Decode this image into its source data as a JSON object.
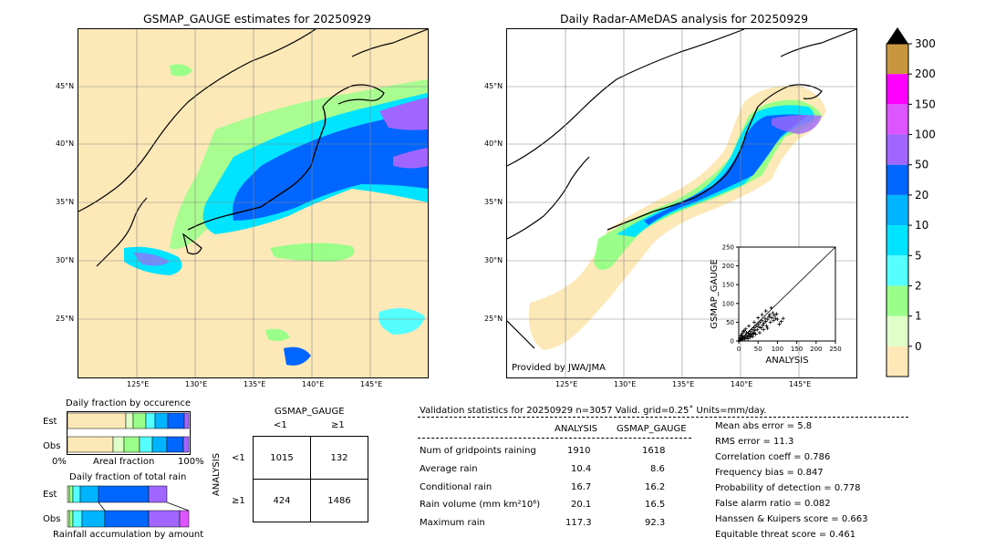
{
  "map_left": {
    "title": "GSMAP_GAUGE estimates for 20250929",
    "lat_labels": [
      "45°N",
      "40°N",
      "35°N",
      "30°N",
      "25°N"
    ],
    "lon_labels": [
      "125°E",
      "130°E",
      "135°E",
      "140°E",
      "145°E"
    ]
  },
  "map_right": {
    "title": "Daily Radar-AMeDAS analysis for 20250929",
    "lat_labels": [
      "45°N",
      "40°N",
      "35°N",
      "30°N",
      "25°N"
    ],
    "lon_labels": [
      "125°E",
      "130°E",
      "135°E",
      "140°E",
      "145°E"
    ],
    "credit": "Provided by JWA/JMA"
  },
  "colorbar": {
    "ticks": [
      "300",
      "200",
      "150",
      "100",
      "50",
      "20",
      "10",
      "5",
      "2",
      "1",
      "0"
    ],
    "colors": [
      "#c8963c",
      "#ff00ff",
      "#dd55ff",
      "#a066ff",
      "#0066ff",
      "#00b4ff",
      "#00e4ff",
      "#55ffff",
      "#99ff88",
      "#dfffc8",
      "#ffe8b8"
    ]
  },
  "fraction_occurrence": {
    "title": "Daily fraction by occurence",
    "rows": [
      "Est",
      "Obs"
    ],
    "axis_left": "0%",
    "axis_mid": "Areal fraction",
    "axis_right": "100%"
  },
  "fraction_total": {
    "title": "Daily fraction of total rain",
    "rows": [
      "Est",
      "Obs"
    ],
    "xlabel": "Rainfall accumulation by amount"
  },
  "contingency": {
    "title": "GSMAP_GAUGE",
    "col_headers": [
      "<1",
      "≥1"
    ],
    "row_label": "ANALYSIS",
    "row_headers": [
      "<1",
      "≥1"
    ],
    "cells": [
      [
        "1015",
        "132"
      ],
      [
        "424",
        "1486"
      ]
    ]
  },
  "validation": {
    "header": "Validation statistics for 20250929  n=3057 Valid. grid=0.25˚ Units=mm/day.",
    "col_analysis": "ANALYSIS",
    "col_gsmap": "GSMAP_GAUGE",
    "rows": [
      {
        "label": "Num of gridpoints raining",
        "analysis": "1910",
        "gsmap": "1618"
      },
      {
        "label": "Average rain",
        "analysis": "10.4",
        "gsmap": "8.6"
      },
      {
        "label": "Conditional rain",
        "analysis": "16.7",
        "gsmap": "16.2"
      },
      {
        "label": "Rain volume (mm km²10⁶)",
        "analysis": "20.1",
        "gsmap": "16.5"
      },
      {
        "label": "Maximum rain",
        "analysis": "117.3",
        "gsmap": "92.3"
      }
    ],
    "scores": [
      "Mean abs error =    5.8",
      "RMS error =   11.3",
      "Correlation coeff =  0.786",
      "Frequency bias =  0.847",
      "Probability of detection =  0.778",
      "False alarm ratio =  0.082",
      "Hanssen & Kuipers score =  0.663",
      "Equitable threat score =  0.461"
    ]
  },
  "chart_data": {
    "type": "scatter",
    "xlabel": "ANALYSIS",
    "ylabel": "GSMAP_GAUGE",
    "xlim": [
      0,
      250
    ],
    "ylim": [
      0,
      250
    ],
    "xticks": [
      "0",
      "50",
      "100",
      "150",
      "200",
      "250"
    ],
    "yticks": [
      "0",
      "50",
      "100",
      "150",
      "200",
      "250"
    ],
    "points": [
      [
        5,
        3
      ],
      [
        8,
        6
      ],
      [
        10,
        12
      ],
      [
        12,
        8
      ],
      [
        15,
        10
      ],
      [
        18,
        15
      ],
      [
        20,
        22
      ],
      [
        22,
        12
      ],
      [
        25,
        20
      ],
      [
        28,
        18
      ],
      [
        30,
        25
      ],
      [
        32,
        15
      ],
      [
        35,
        30
      ],
      [
        38,
        22
      ],
      [
        40,
        35
      ],
      [
        42,
        28
      ],
      [
        45,
        40
      ],
      [
        48,
        30
      ],
      [
        50,
        45
      ],
      [
        52,
        38
      ],
      [
        55,
        50
      ],
      [
        58,
        35
      ],
      [
        60,
        55
      ],
      [
        62,
        42
      ],
      [
        65,
        48
      ],
      [
        68,
        60
      ],
      [
        70,
        52
      ],
      [
        72,
        40
      ],
      [
        75,
        58
      ],
      [
        78,
        65
      ],
      [
        80,
        70
      ],
      [
        82,
        50
      ],
      [
        85,
        62
      ],
      [
        88,
        75
      ],
      [
        90,
        55
      ],
      [
        92,
        68
      ],
      [
        95,
        60
      ],
      [
        98,
        72
      ],
      [
        100,
        58
      ],
      [
        105,
        45
      ],
      [
        110,
        52
      ],
      [
        115,
        60
      ],
      [
        3,
        8
      ],
      [
        6,
        14
      ],
      [
        9,
        20
      ],
      [
        14,
        28
      ],
      [
        16,
        5
      ],
      [
        24,
        6
      ],
      [
        30,
        10
      ],
      [
        36,
        12
      ],
      [
        44,
        18
      ],
      [
        54,
        22
      ],
      [
        64,
        30
      ],
      [
        74,
        34
      ],
      [
        84,
        88
      ],
      [
        70,
        80
      ],
      [
        60,
        70
      ],
      [
        50,
        62
      ],
      [
        40,
        50
      ],
      [
        26,
        40
      ],
      [
        18,
        32
      ],
      [
        12,
        25
      ],
      [
        7,
        16
      ],
      [
        2,
        2
      ],
      [
        4,
        5
      ],
      [
        11,
        4
      ],
      [
        19,
        9
      ],
      [
        27,
        14
      ],
      [
        33,
        18
      ],
      [
        39,
        20
      ]
    ]
  }
}
